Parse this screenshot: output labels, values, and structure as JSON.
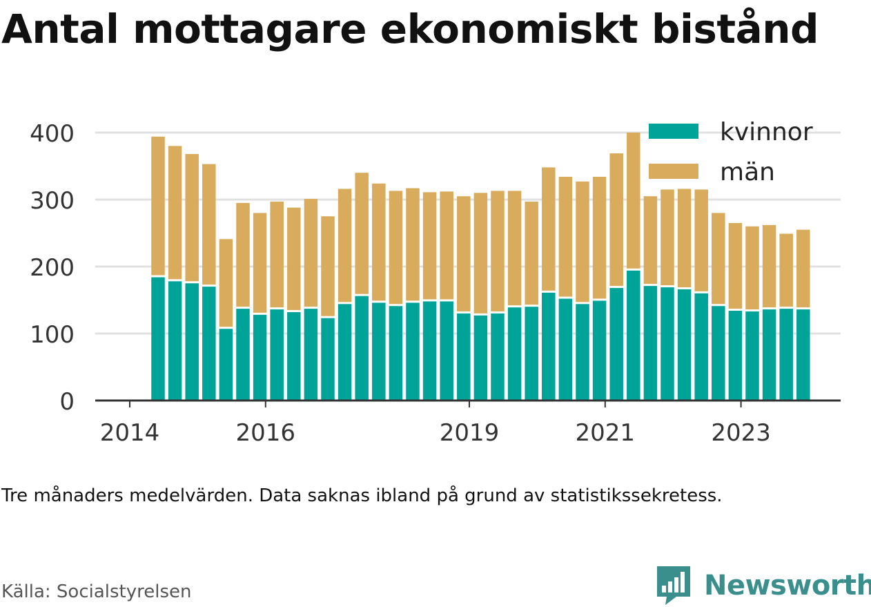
{
  "title": "Antal mottagare ekonomiskt bistånd",
  "subtitle": "Tre månaders medelvärden. Data saknas ibland på grund av statistikssekretess.",
  "source": "Källa: Socialstyrelsen",
  "brand": {
    "name": "Newsworthy",
    "icon": "newsworthy-chart-bubble-icon",
    "color": "#3a8f8c"
  },
  "colors": {
    "kvinnor": "#00a398",
    "man": "#d9ab5c",
    "grid": "#e0e0e0",
    "axis": "#333333"
  },
  "chart_data": {
    "type": "bar",
    "stacked": true,
    "x": [
      "2014-06",
      "2014-09",
      "2014-12",
      "2015-03",
      "2015-06",
      "2015-09",
      "2015-12",
      "2016-03",
      "2016-06",
      "2016-09",
      "2016-12",
      "2017-03",
      "2017-06",
      "2017-09",
      "2017-12",
      "2018-03",
      "2018-06",
      "2018-09",
      "2018-12",
      "2019-03",
      "2019-06",
      "2019-09",
      "2019-12",
      "2020-03",
      "2020-06",
      "2020-09",
      "2020-12",
      "2021-03",
      "2021-06",
      "2021-09",
      "2021-12",
      "2022-03",
      "2022-06",
      "2022-09",
      "2022-12",
      "2023-03",
      "2023-06",
      "2023-09",
      "2023-12"
    ],
    "series": [
      {
        "name": "kvinnor",
        "values": [
          184,
          178,
          175,
          170,
          107,
          137,
          128,
          136,
          132,
          137,
          123,
          144,
          156,
          146,
          141,
          146,
          148,
          148,
          130,
          127,
          130,
          139,
          140,
          161,
          152,
          144,
          149,
          168,
          194,
          171,
          169,
          166,
          160,
          141,
          134,
          133,
          136,
          137,
          136
        ]
      },
      {
        "name": "män",
        "values": [
          210,
          202,
          193,
          183,
          134,
          158,
          152,
          161,
          156,
          164,
          152,
          172,
          184,
          178,
          172,
          171,
          163,
          164,
          175,
          183,
          183,
          174,
          157,
          187,
          182,
          183,
          185,
          201,
          206,
          134,
          146,
          150,
          155,
          139,
          131,
          127,
          126,
          112,
          119
        ]
      }
    ],
    "xticks": [
      "2014",
      "2016",
      "2019",
      "2021",
      "2023"
    ],
    "yticks": [
      0,
      100,
      200,
      300,
      400
    ],
    "ylim": [
      0,
      420
    ],
    "legend": {
      "placement": "top-right",
      "entries": [
        "kvinnor",
        "män"
      ]
    },
    "grid": true
  }
}
